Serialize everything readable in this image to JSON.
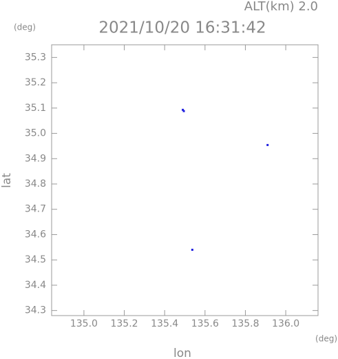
{
  "chart_data": {
    "type": "scatter",
    "title": "2021/10/20 16:31:42",
    "subtitle": "ALT(km) 2.0",
    "y_unit": "(deg)",
    "x_unit": "(deg)",
    "xlabel": "lon",
    "ylabel": "lat",
    "series": [
      {
        "color": "#2020e0",
        "x": [
          135.49,
          135.495,
          135.91,
          135.537
        ],
        "values": [
          35.093,
          35.088,
          34.954,
          34.54
        ]
      }
    ],
    "xlim": [
      134.84,
      136.16
    ],
    "ylim": [
      34.28,
      35.35
    ],
    "xticks": [
      {
        "value": 135,
        "label": "135.0"
      },
      135.2,
      135.4,
      135.6,
      135.8,
      {
        "value": 136,
        "label": "136.0"
      }
    ],
    "yticks": [
      34.3,
      34.4,
      34.5,
      34.6,
      34.7,
      34.8,
      34.9,
      {
        "value": 35,
        "label": "35.0"
      },
      35.1,
      35.2,
      35.3
    ]
  }
}
